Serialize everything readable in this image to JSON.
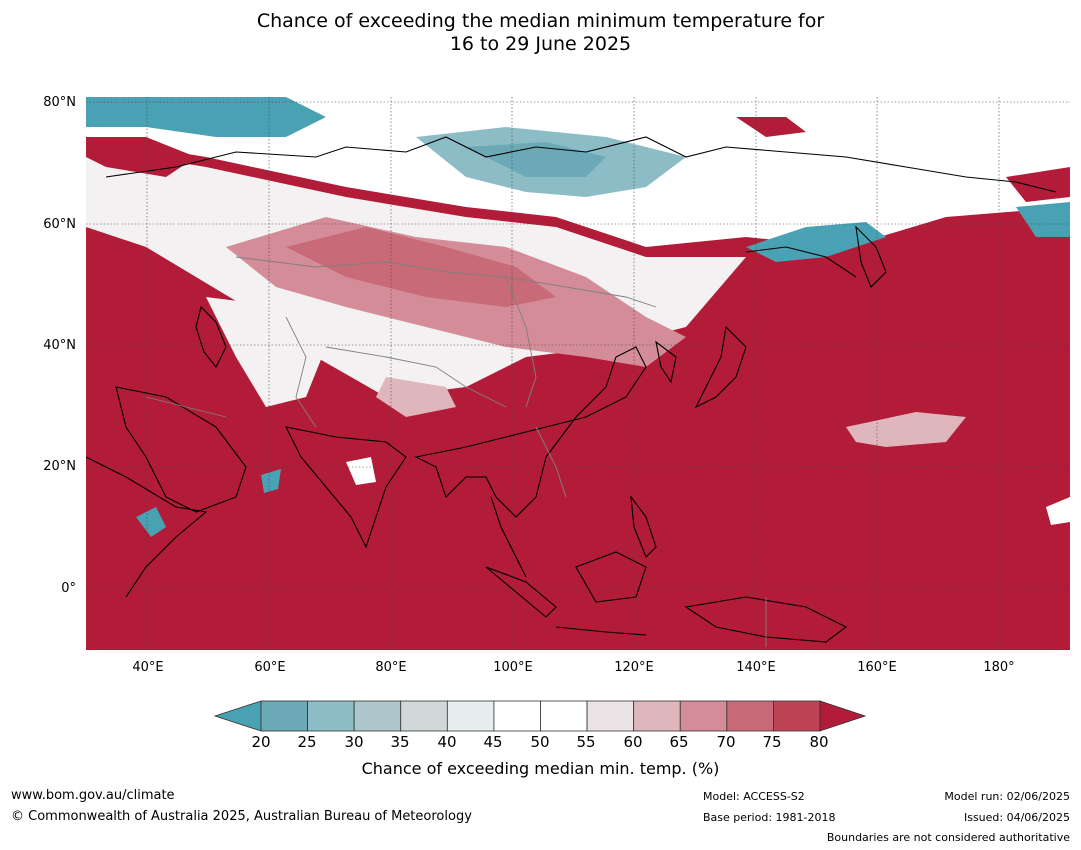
{
  "title": {
    "line1": "Chance of exceeding the median minimum temperature for",
    "line2": "16 to 29 June 2025"
  },
  "map": {
    "lat_labels": [
      "80°N",
      "60°N",
      "40°N",
      "20°N",
      "0°"
    ],
    "lon_labels": [
      "40°E",
      "60°E",
      "80°E",
      "100°E",
      "120°E",
      "140°E",
      "160°E",
      "180°"
    ],
    "colors": {
      "above": "#b31c38",
      "below": "#48a2b3",
      "neutral": "#ffffff",
      "coast": "#000000",
      "border": "#808080"
    }
  },
  "colorbar": {
    "ticks": [
      "20",
      "25",
      "30",
      "35",
      "40",
      "45",
      "50",
      "55",
      "60",
      "65",
      "70",
      "75",
      "80"
    ],
    "colors": [
      "#6ba9b6",
      "#8cbcc6",
      "#adc7cc",
      "#d0d8da",
      "#e8eef0",
      "#ffffff",
      "#ffffff",
      "#ebe4e6",
      "#e0b6bd",
      "#d48c98",
      "#c86a77",
      "#bd4454"
    ],
    "low_extend_color": "#48a2b3",
    "high_extend_color": "#b31c38",
    "title": "Chance of exceeding median min. temp. (%)"
  },
  "footer": {
    "website": "www.bom.gov.au/climate",
    "copyright": "© Commonwealth of Australia 2025, Australian Bureau of Meteorology",
    "model": "Model: ACCESS-S2",
    "base_period": "Base period: 1981-2018",
    "model_run": "Model run: 02/06/2025",
    "issued": "Issued: 04/06/2025",
    "disclaimer": "Boundaries are not considered authoritative"
  }
}
